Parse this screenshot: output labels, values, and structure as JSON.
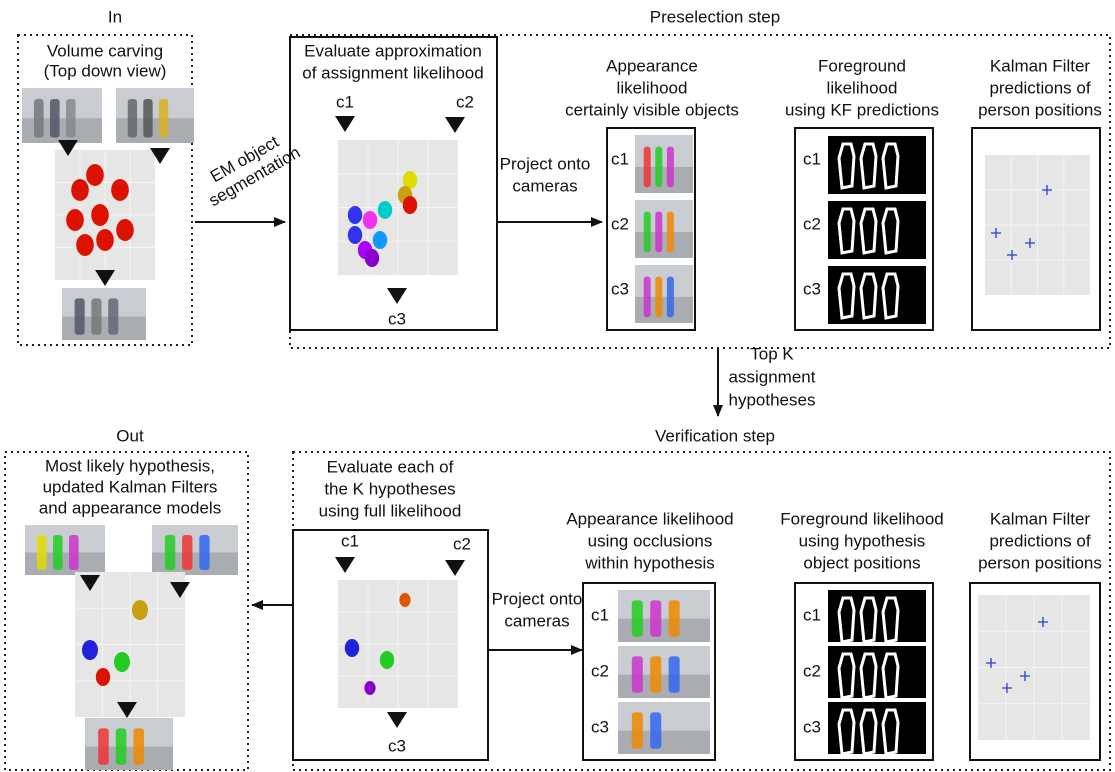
{
  "input": {
    "title": "In",
    "caption": [
      "Volume carving",
      "(Top down view)"
    ]
  },
  "segmentation_label": [
    "EM object",
    "segmentation"
  ],
  "preselection": {
    "title": "Preselection step",
    "evaluate": {
      "caption": [
        "Evaluate approximation",
        "of assignment likelihood"
      ],
      "cameras": [
        "c1",
        "c2",
        "c3"
      ]
    },
    "projection_label": [
      "Project onto",
      "cameras"
    ],
    "appearance": {
      "caption": [
        "Appearance",
        "likelihood",
        "certainly visible objects"
      ],
      "cameras": [
        "c1",
        "c2",
        "c3"
      ]
    },
    "foreground": {
      "caption": [
        "Foreground",
        "likelihood",
        "using KF predictions"
      ],
      "cameras": [
        "c1",
        "c2",
        "c3"
      ]
    },
    "kalman": {
      "caption": [
        "Kalman Filter",
        "predictions of",
        "person positions"
      ]
    }
  },
  "transition_label": [
    "Top K",
    "assignment",
    "hypotheses"
  ],
  "verification": {
    "title": "Verification step",
    "evaluate": {
      "caption": [
        "Evaluate each of",
        "the K hypotheses",
        "using full likelihood"
      ],
      "cameras": [
        "c1",
        "c2",
        "c3"
      ]
    },
    "projection_label": [
      "Project onto",
      "cameras"
    ],
    "appearance": {
      "caption": [
        "Appearance likelihood",
        "using occlusions",
        "within hypothesis"
      ],
      "cameras": [
        "c1",
        "c2",
        "c3"
      ]
    },
    "foreground": {
      "caption": [
        "Foreground likelihood",
        "using hypothesis",
        "object positions"
      ],
      "cameras": [
        "c1",
        "c2",
        "c3"
      ]
    },
    "kalman": {
      "caption": [
        "Kalman Filter",
        "predictions of",
        "person positions"
      ]
    }
  },
  "output": {
    "title": "Out",
    "caption": [
      "Most likely hypothesis,",
      "updated Kalman Filters",
      "and appearance models"
    ]
  }
}
